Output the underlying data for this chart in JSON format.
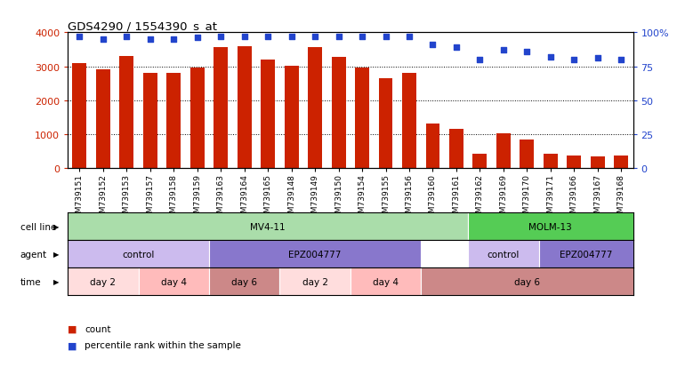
{
  "title": "GDS4290 / 1554390_s_at",
  "samples": [
    "GSM739151",
    "GSM739152",
    "GSM739153",
    "GSM739157",
    "GSM739158",
    "GSM739159",
    "GSM739163",
    "GSM739164",
    "GSM739165",
    "GSM739148",
    "GSM739149",
    "GSM739150",
    "GSM739154",
    "GSM739155",
    "GSM739156",
    "GSM739160",
    "GSM739161",
    "GSM739162",
    "GSM739169",
    "GSM739170",
    "GSM739171",
    "GSM739166",
    "GSM739167",
    "GSM739168"
  ],
  "counts": [
    3100,
    2900,
    3300,
    2800,
    2800,
    2950,
    3550,
    3580,
    3200,
    3020,
    3550,
    3280,
    2950,
    2640,
    2800,
    1320,
    1160,
    430,
    1040,
    860,
    440,
    380,
    360,
    380
  ],
  "percentile_ranks": [
    97,
    95,
    97,
    95,
    95,
    96,
    97,
    97,
    97,
    97,
    97,
    97,
    97,
    97,
    97,
    91,
    89,
    80,
    87,
    86,
    82,
    80,
    81,
    80
  ],
  "bar_color": "#cc2200",
  "dot_color": "#2244cc",
  "ylim_left": [
    0,
    4000
  ],
  "ylim_right": [
    0,
    100
  ],
  "yticks_left": [
    0,
    1000,
    2000,
    3000,
    4000
  ],
  "yticks_right": [
    0,
    25,
    50,
    75,
    100
  ],
  "yticklabels_right": [
    "0",
    "25",
    "50",
    "75",
    "100%"
  ],
  "cell_segments": [
    {
      "label": "MV4-11",
      "start": 0,
      "end": 17,
      "color": "#aaddaa"
    },
    {
      "label": "MOLM-13",
      "start": 17,
      "end": 24,
      "color": "#55cc55"
    }
  ],
  "agent_segments": [
    {
      "label": "control",
      "start": 0,
      "end": 6,
      "color": "#ccbbee"
    },
    {
      "label": "EPZ004777",
      "start": 6,
      "end": 15,
      "color": "#8877cc"
    },
    {
      "label": "control",
      "start": 17,
      "end": 20,
      "color": "#ccbbee"
    },
    {
      "label": "EPZ004777",
      "start": 20,
      "end": 24,
      "color": "#8877cc"
    }
  ],
  "time_segments": [
    {
      "label": "day 2",
      "start": 0,
      "end": 3,
      "color": "#ffdddd"
    },
    {
      "label": "day 4",
      "start": 3,
      "end": 6,
      "color": "#ffbbbb"
    },
    {
      "label": "day 6",
      "start": 6,
      "end": 9,
      "color": "#cc8888"
    },
    {
      "label": "day 2",
      "start": 9,
      "end": 12,
      "color": "#ffdddd"
    },
    {
      "label": "day 4",
      "start": 12,
      "end": 15,
      "color": "#ffbbbb"
    },
    {
      "label": "day 6",
      "start": 15,
      "end": 24,
      "color": "#cc8888"
    }
  ],
  "row_labels": [
    "cell line",
    "agent",
    "time"
  ],
  "legend_items": [
    {
      "color": "#cc2200",
      "label": "count"
    },
    {
      "color": "#2244cc",
      "label": "percentile rank within the sample"
    }
  ]
}
